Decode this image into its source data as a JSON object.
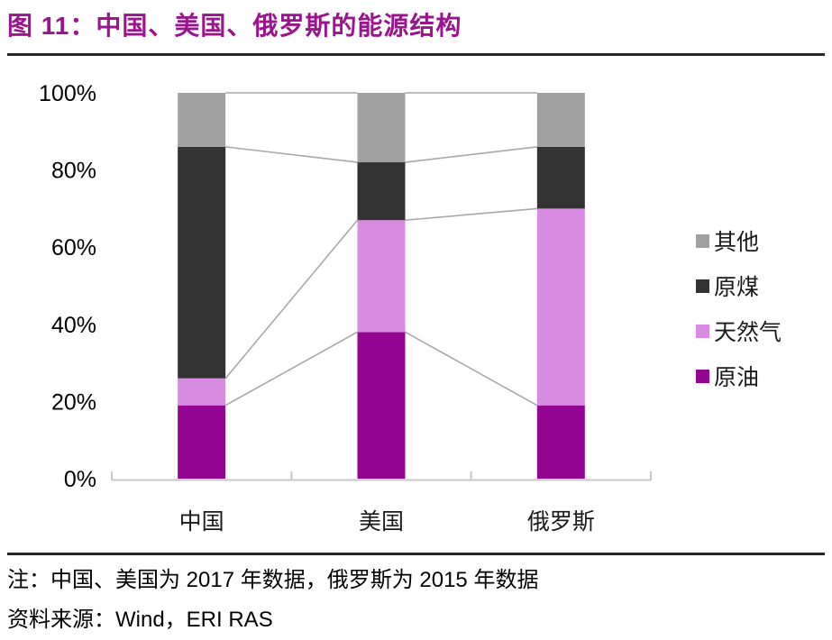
{
  "title": "图 11：中国、美国、俄罗斯的能源结构",
  "chart_data": {
    "type": "bar",
    "subtype": "100%-stacked-column",
    "title": "中国、美国、俄罗斯的能源结构",
    "categories": [
      "中国",
      "美国",
      "俄罗斯"
    ],
    "series": [
      {
        "name": "原油",
        "color": "#940692",
        "values": [
          19,
          38,
          19
        ]
      },
      {
        "name": "天然气",
        "color": "#d78be1",
        "values": [
          7,
          29,
          51
        ]
      },
      {
        "name": "原煤",
        "color": "#333333",
        "values": [
          60,
          15,
          16
        ]
      },
      {
        "name": "其他",
        "color": "#a1a1a1",
        "values": [
          14,
          18,
          14
        ]
      }
    ],
    "legend_order": [
      "其他",
      "原煤",
      "天然气",
      "原油"
    ],
    "y_axis": {
      "tick_labels": [
        "100%",
        "80%",
        "60%",
        "40%",
        "20%",
        "0%"
      ],
      "tick_values": [
        100,
        80,
        60,
        40,
        20,
        0
      ],
      "range": [
        0,
        100
      ]
    },
    "legend_position": "right",
    "series_lines": true,
    "grid": false
  },
  "footer": {
    "note": "注：中国、美国为 2017 年数据，俄罗斯为 2015 年数据",
    "source": "资料来源：Wind，ERI RAS"
  },
  "colors": {
    "title": "#9a148d",
    "rule": "#262626",
    "axis": "#c8c8c8",
    "axis_text": "#000000",
    "connector": "#a8a8a8"
  }
}
